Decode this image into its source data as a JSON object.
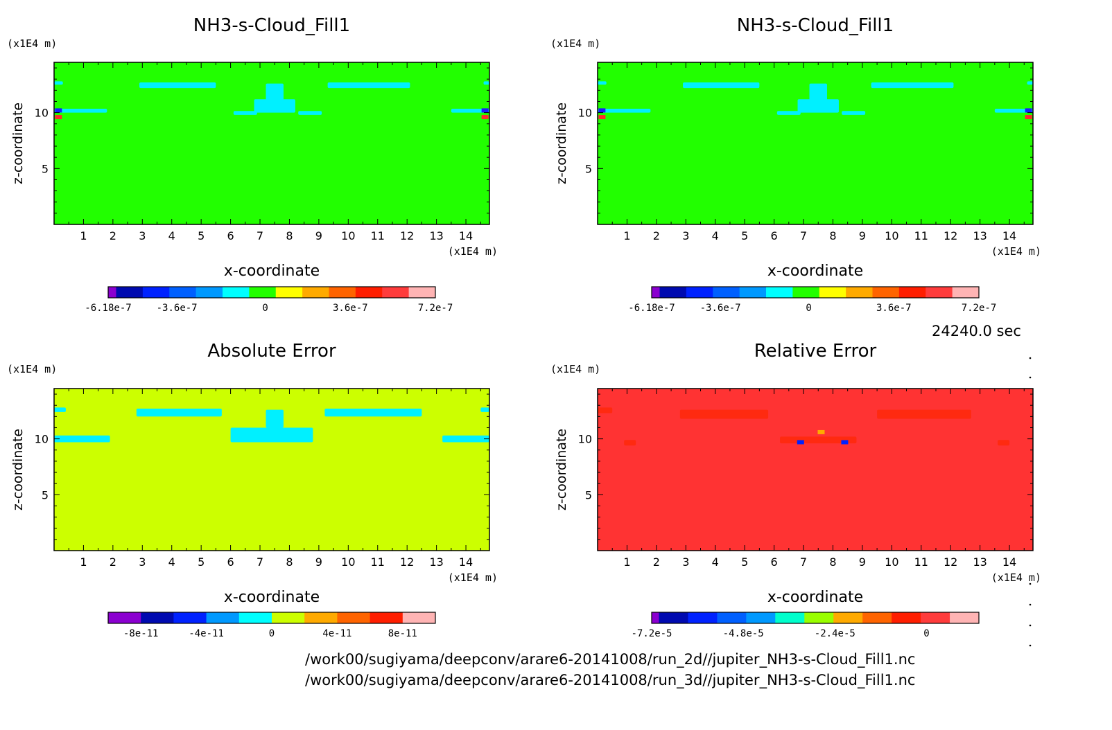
{
  "time_label": "24240.0 sec",
  "footer": {
    "line1": "/work00/sugiyama/deepconv/arare6-20141008/run_2d//jupiter_NH3-s-Cloud_Fill1.nc",
    "line2": "/work00/sugiyama/deepconv/arare6-20141008/run_3d//jupiter_NH3-s-Cloud_Fill1.nc"
  },
  "chart_data": [
    {
      "type": "heatmap",
      "title": "NH3-s-Cloud_Fill1",
      "xlabel": "x-coordinate",
      "ylabel": "z-coordinate",
      "x_unit": "(×1E4 m)",
      "y_unit": "(×1E4 m)",
      "x_ticks": [
        "1",
        "2",
        "3",
        "4",
        "5",
        "6",
        "7",
        "8",
        "9",
        "10",
        "11",
        "12",
        "13",
        "14"
      ],
      "y_ticks": [
        "5",
        "10"
      ],
      "xlim": [
        0,
        14.8
      ],
      "ylim": [
        0,
        14.5
      ],
      "background_color": "#22ff00",
      "patch_color": "#00f0ff",
      "patches": [
        [
          2.9,
          12.2,
          2.6,
          0.5
        ],
        [
          9.3,
          12.2,
          2.8,
          0.5
        ],
        [
          7.2,
          11.0,
          0.6,
          1.6
        ],
        [
          6.8,
          10.0,
          1.4,
          1.2
        ],
        [
          6.1,
          9.8,
          0.8,
          0.35
        ],
        [
          8.3,
          9.8,
          0.8,
          0.35
        ],
        [
          0,
          10.0,
          1.8,
          0.35
        ],
        [
          13.5,
          10.0,
          1.3,
          0.35
        ],
        [
          0,
          12.5,
          0.3,
          0.3
        ],
        [
          14.6,
          12.5,
          0.2,
          0.3
        ]
      ],
      "spots": [
        [
          0.15,
          9.6,
          "#ff2a2a"
        ],
        [
          0.15,
          10.2,
          "#1a1aff"
        ],
        [
          14.65,
          9.6,
          "#ff2a2a"
        ],
        [
          14.65,
          10.2,
          "#1a1aff"
        ]
      ],
      "colorbar": {
        "colors": [
          "#8b00d0",
          "#000ab0",
          "#0022ff",
          "#0060ff",
          "#0099ff",
          "#00ffff",
          "#22ff00",
          "#ffff00",
          "#ffaa00",
          "#ff6400",
          "#ff1e00",
          "#ff3c3c",
          "#ffb4b4"
        ],
        "first_width_fraction": 0.3,
        "labels": [
          [
            "-6.18e-7",
            0.0
          ],
          [
            "-3.6e-7",
            0.21
          ],
          [
            "0",
            0.48
          ],
          [
            "3.6e-7",
            0.74
          ],
          [
            "7.2e-7",
            1.0
          ]
        ]
      }
    },
    {
      "type": "heatmap",
      "title": "NH3-s-Cloud_Fill1",
      "xlabel": "x-coordinate",
      "ylabel": "z-coordinate",
      "x_unit": "(×1E4 m)",
      "y_unit": "(×1E4 m)",
      "x_ticks": [
        "1",
        "2",
        "3",
        "4",
        "5",
        "6",
        "7",
        "8",
        "9",
        "10",
        "11",
        "12",
        "13",
        "14"
      ],
      "y_ticks": [
        "5",
        "10"
      ],
      "xlim": [
        0,
        14.8
      ],
      "ylim": [
        0,
        14.5
      ],
      "background_color": "#22ff00",
      "patch_color": "#00f0ff",
      "patches": [
        [
          2.9,
          12.2,
          2.6,
          0.5
        ],
        [
          9.3,
          12.2,
          2.8,
          0.5
        ],
        [
          7.2,
          11.0,
          0.6,
          1.6
        ],
        [
          6.8,
          10.0,
          1.4,
          1.2
        ],
        [
          6.1,
          9.8,
          0.8,
          0.35
        ],
        [
          8.3,
          9.8,
          0.8,
          0.35
        ],
        [
          0,
          10.0,
          1.8,
          0.35
        ],
        [
          13.5,
          10.0,
          1.3,
          0.35
        ],
        [
          0,
          12.5,
          0.3,
          0.3
        ],
        [
          14.6,
          12.5,
          0.2,
          0.3
        ]
      ],
      "spots": [
        [
          0.15,
          9.6,
          "#ff2a2a"
        ],
        [
          0.15,
          10.2,
          "#1a1aff"
        ],
        [
          14.65,
          9.6,
          "#ff2a2a"
        ],
        [
          14.65,
          10.2,
          "#1a1aff"
        ]
      ],
      "colorbar": {
        "colors": [
          "#8b00d0",
          "#000ab0",
          "#0022ff",
          "#0060ff",
          "#0099ff",
          "#00ffff",
          "#22ff00",
          "#ffff00",
          "#ffaa00",
          "#ff6400",
          "#ff1e00",
          "#ff3c3c",
          "#ffb4b4"
        ],
        "first_width_fraction": 0.3,
        "labels": [
          [
            "-6.18e-7",
            0.0
          ],
          [
            "-3.6e-7",
            0.21
          ],
          [
            "0",
            0.48
          ],
          [
            "3.6e-7",
            0.74
          ],
          [
            "7.2e-7",
            1.0
          ]
        ]
      }
    },
    {
      "type": "heatmap",
      "title": "Absolute Error",
      "xlabel": "x-coordinate",
      "ylabel": "z-coordinate",
      "x_unit": "(×1E4 m)",
      "y_unit": "(×1E4 m)",
      "x_ticks": [
        "1",
        "2",
        "3",
        "4",
        "5",
        "6",
        "7",
        "8",
        "9",
        "10",
        "11",
        "12",
        "13",
        "14"
      ],
      "y_ticks": [
        "5",
        "10"
      ],
      "xlim": [
        0,
        14.8
      ],
      "ylim": [
        0,
        14.5
      ],
      "background_color": "#ccff00",
      "patch_color": "#00f0ff",
      "patches": [
        [
          2.8,
          12.0,
          2.9,
          0.7
        ],
        [
          9.2,
          12.0,
          3.3,
          0.7
        ],
        [
          7.2,
          11.0,
          0.6,
          1.6
        ],
        [
          6.0,
          9.7,
          2.8,
          1.3
        ],
        [
          0,
          9.7,
          1.9,
          0.6
        ],
        [
          13.2,
          9.7,
          1.6,
          0.6
        ],
        [
          0,
          12.4,
          0.4,
          0.4
        ],
        [
          14.5,
          12.4,
          0.3,
          0.4
        ]
      ],
      "spots": [],
      "colorbar": {
        "colors": [
          "#8b00d0",
          "#000ab0",
          "#0022ff",
          "#0099ff",
          "#00ffff",
          "#ccff00",
          "#ffaa00",
          "#ff6400",
          "#ff1e00",
          "#ffb4b4"
        ],
        "first_width_fraction": 1.0,
        "labels": [
          [
            "-8e-11",
            0.1
          ],
          [
            "-4e-11",
            0.3
          ],
          [
            "0",
            0.5
          ],
          [
            "4e-11",
            0.7
          ],
          [
            "8e-11",
            0.9
          ]
        ]
      }
    },
    {
      "type": "heatmap",
      "title": "Relative Error",
      "xlabel": "x-coordinate",
      "ylabel": "z-coordinate",
      "x_unit": "(×1E4 m)",
      "y_unit": "(×1E4 m)",
      "x_ticks": [
        "1",
        "2",
        "3",
        "4",
        "5",
        "6",
        "7",
        "8",
        "9",
        "10",
        "11",
        "12",
        "13",
        "14"
      ],
      "y_ticks": [
        "5",
        "10"
      ],
      "xlim": [
        0,
        14.8
      ],
      "ylim": [
        0,
        14.5
      ],
      "background_color": "#ff3333",
      "patch_color": "#ff2a10",
      "patches": [
        [
          2.8,
          11.8,
          3.0,
          0.8
        ],
        [
          9.5,
          11.8,
          3.2,
          0.8
        ],
        [
          6.2,
          9.6,
          2.6,
          0.6
        ],
        [
          0.9,
          9.4,
          0.4,
          0.5
        ],
        [
          13.6,
          9.4,
          0.4,
          0.5
        ],
        [
          0,
          12.3,
          0.5,
          0.5
        ]
      ],
      "spots": [
        [
          6.9,
          9.7,
          "#0022ff"
        ],
        [
          8.4,
          9.7,
          "#0022ff"
        ],
        [
          7.6,
          10.6,
          "#ffaa00"
        ]
      ],
      "colorbar": {
        "colors": [
          "#8b00d0",
          "#000ab0",
          "#0022ff",
          "#0060ff",
          "#0099ff",
          "#00ffcc",
          "#99ff00",
          "#ffaa00",
          "#ff6400",
          "#ff1e00",
          "#ff3c3c",
          "#ffb4b4"
        ],
        "first_width_fraction": 0.25,
        "labels": [
          [
            "-7.2e-5",
            0.0
          ],
          [
            "-4.8e-5",
            0.28
          ],
          [
            "-2.4e-5",
            0.56
          ],
          [
            "0",
            0.84
          ]
        ]
      }
    }
  ]
}
